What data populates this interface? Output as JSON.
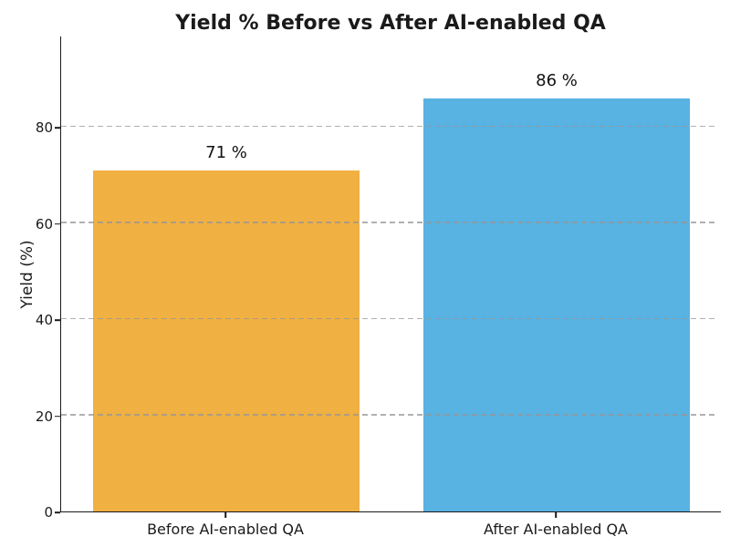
{
  "title": "Yield % Before vs After AI-enabled QA",
  "y_axis": {
    "label": "Yield (%)",
    "tick_labels": [
      "0",
      "20",
      "40",
      "60",
      "80"
    ]
  },
  "chart_data": {
    "type": "bar",
    "title": "Yield % Before vs After AI-enabled QA",
    "categories": [
      "Before AI-enabled QA",
      "After AI-enabled QA"
    ],
    "values": [
      71,
      86
    ],
    "bar_labels": [
      "71 %",
      "86 %"
    ],
    "bar_colors": [
      "#F0B042",
      "#58B2E2"
    ],
    "xlabel": "",
    "ylabel": "Yield (%)",
    "ylim": [
      0,
      99
    ],
    "yticks": [
      0,
      20,
      40,
      60,
      80
    ],
    "grid": "horizontal-dashed-over-bars",
    "legend": "none"
  }
}
